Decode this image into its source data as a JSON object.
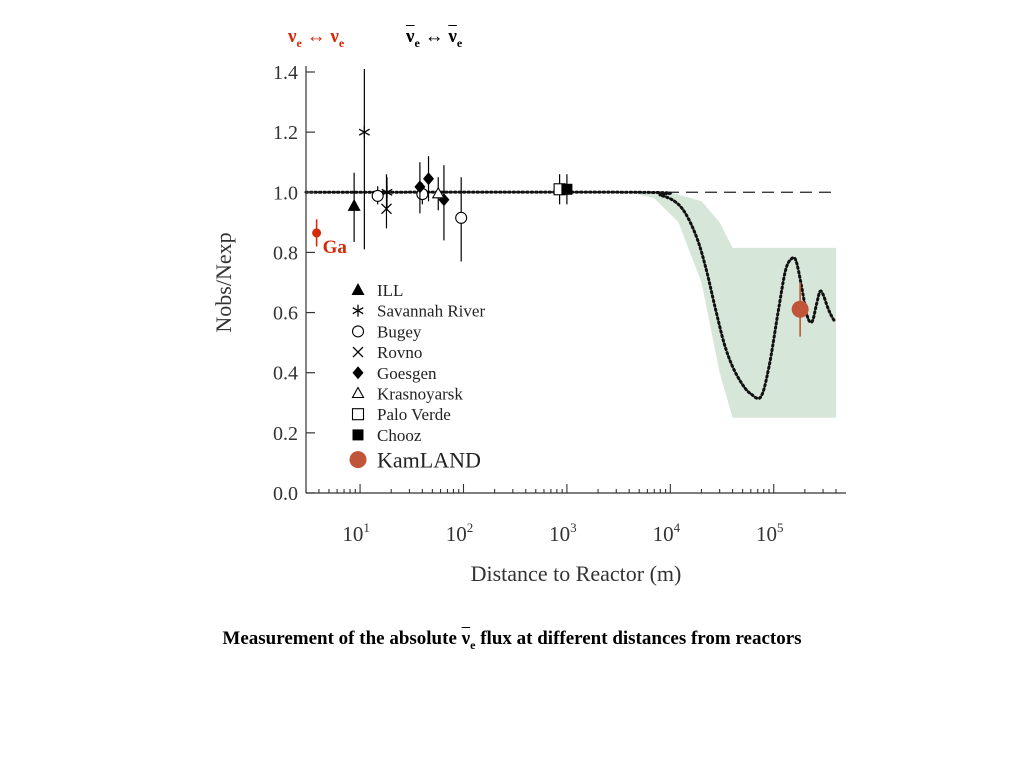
{
  "header": {
    "left_symbol": "ν",
    "left_sub": "e",
    "left_arrow": "↔",
    "left_symbol2": "ν",
    "left_sub2": "e",
    "right_symbol": "ν",
    "right_sub": "e",
    "right_arrow": "↔",
    "right_symbol2": "ν",
    "right_sub2": "e",
    "left_color": "#d42a0a"
  },
  "caption": {
    "before": "Measurement of the absolute ",
    "symbol": "ν",
    "sub": "e",
    "after": " flux at different distances from reactors"
  },
  "chart_data": {
    "type": "scatter",
    "xscale": "log",
    "xlim": [
      3,
      400000
    ],
    "ylim": [
      0,
      1.4
    ],
    "xlabel": "Distance to Reactor (m)",
    "ylabel": "Nobs/Nexp",
    "yticks": [
      "0.0",
      "0.2",
      "0.4",
      "0.6",
      "0.8",
      "1.0",
      "1.2",
      "1.4"
    ],
    "xticks": [
      {
        "base": "10",
        "exp": "1"
      },
      {
        "base": "10",
        "exp": "2"
      },
      {
        "base": "10",
        "exp": "3"
      },
      {
        "base": "10",
        "exp": "4"
      },
      {
        "base": "10",
        "exp": "5"
      }
    ],
    "grid": false,
    "legend_position": "inside-left",
    "reference_line": 1.0,
    "series": [
      {
        "name": "ILL",
        "marker": "filled-triangle",
        "points": [
          {
            "x": 8.76,
            "y": 0.955,
            "err": [
              0.835,
              1.065
            ]
          }
        ]
      },
      {
        "name": "Savannah River",
        "marker": "asterisk",
        "points": [
          {
            "x": 11,
            "y": 1.2,
            "err": [
              0.81,
              1.41
            ]
          },
          {
            "x": 18.2,
            "y": 1.0,
            "err": [
              0.95,
              1.05
            ]
          }
        ]
      },
      {
        "name": "Bugey",
        "marker": "open-circle",
        "points": [
          {
            "x": 14.8,
            "y": 0.988,
            "err": [
              0.96,
              1.02
            ]
          },
          {
            "x": 40,
            "y": 0.994,
            "err": [
              0.96,
              1.03
            ]
          },
          {
            "x": 95,
            "y": 0.915,
            "err": [
              0.77,
              1.05
            ]
          }
        ]
      },
      {
        "name": "Rovno",
        "marker": "x",
        "points": [
          {
            "x": 18,
            "y": 0.945,
            "err": [
              0.88,
              1.06
            ]
          }
        ]
      },
      {
        "name": "Goesgen",
        "marker": "filled-diamond",
        "points": [
          {
            "x": 37.9,
            "y": 1.018,
            "err": [
              0.93,
              1.1
            ]
          },
          {
            "x": 45.9,
            "y": 1.045,
            "err": [
              0.97,
              1.12
            ]
          },
          {
            "x": 64.7,
            "y": 0.975,
            "err": [
              0.84,
              1.09
            ]
          }
        ]
      },
      {
        "name": "Krasnoyarsk",
        "marker": "open-triangle",
        "points": [
          {
            "x": 57,
            "y": 0.995,
            "err": [
              0.94,
              1.05
            ]
          }
        ]
      },
      {
        "name": "Palo Verde",
        "marker": "open-square",
        "points": [
          {
            "x": 850,
            "y": 1.01,
            "err": [
              0.96,
              1.06
            ]
          }
        ]
      },
      {
        "name": "Chooz",
        "marker": "filled-square",
        "points": [
          {
            "x": 1000,
            "y": 1.01,
            "err": [
              0.96,
              1.06
            ]
          }
        ]
      },
      {
        "name": "KamLAND",
        "marker": "red-circle",
        "color": "#c0553a",
        "points": [
          {
            "x": 180000,
            "y": 0.611,
            "err": [
              0.52,
              0.7
            ]
          }
        ]
      },
      {
        "name": "Ga",
        "marker": "red-dot",
        "color": "#d42a0a",
        "points": [
          {
            "x": 3.8,
            "y": 0.865,
            "err": [
              0.82,
              0.91
            ]
          }
        ]
      }
    ],
    "oscillation_curve": {
      "style": "dotted",
      "points": [
        [
          3,
          1.0
        ],
        [
          5000,
          1.0
        ],
        [
          8000,
          0.99
        ],
        [
          11000,
          0.97
        ],
        [
          14000,
          0.93
        ],
        [
          18000,
          0.85
        ],
        [
          22000,
          0.75
        ],
        [
          27000,
          0.62
        ],
        [
          33000,
          0.5
        ],
        [
          40000,
          0.42
        ],
        [
          50000,
          0.36
        ],
        [
          60000,
          0.33
        ],
        [
          75000,
          0.32
        ],
        [
          90000,
          0.42
        ],
        [
          110000,
          0.6
        ],
        [
          130000,
          0.74
        ],
        [
          150000,
          0.78
        ],
        [
          165000,
          0.77
        ],
        [
          185000,
          0.69
        ],
        [
          210000,
          0.59
        ],
        [
          235000,
          0.57
        ],
        [
          260000,
          0.63
        ],
        [
          280000,
          0.67
        ],
        [
          300000,
          0.66
        ],
        [
          330000,
          0.62
        ],
        [
          360000,
          0.59
        ],
        [
          390000,
          0.57
        ]
      ]
    },
    "band": {
      "color": "#d6e6d9",
      "upper": [
        [
          4000,
          1.0
        ],
        [
          10000,
          1.0
        ],
        [
          20000,
          0.97
        ],
        [
          30000,
          0.9
        ],
        [
          40000,
          0.815
        ],
        [
          400000,
          0.815
        ]
      ],
      "lower": [
        [
          400000,
          0.25
        ],
        [
          40000,
          0.25
        ],
        [
          30000,
          0.4
        ],
        [
          20000,
          0.7
        ],
        [
          12000,
          0.9
        ],
        [
          7000,
          0.98
        ],
        [
          4000,
          1.0
        ]
      ]
    },
    "annotation": {
      "text": "Ga",
      "color": "#d42a0a"
    }
  }
}
